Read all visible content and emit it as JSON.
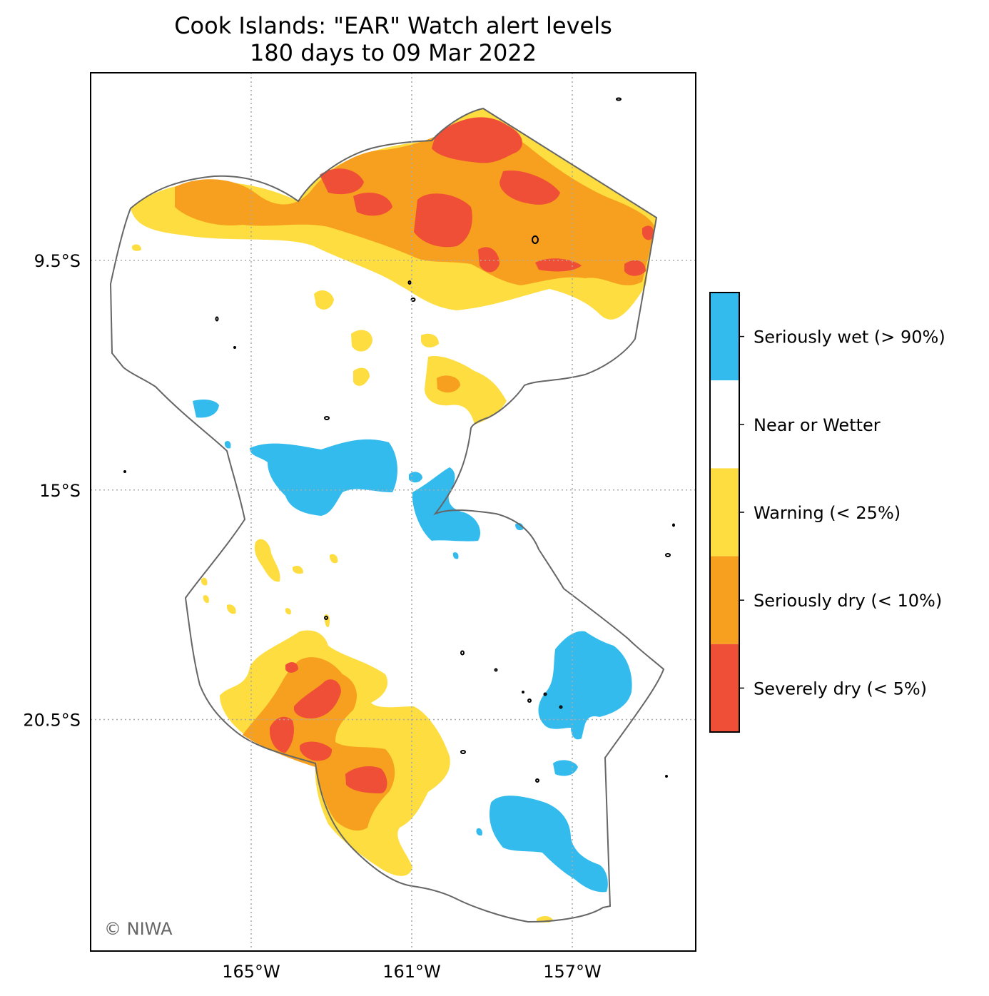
{
  "title_line1": "Cook Islands: \"EAR\" Watch alert levels",
  "title_line2": "180 days to 09 Mar 2022",
  "copyright": "© NIWA",
  "axes": {
    "x_ticks": [
      {
        "lon": -165,
        "label": "165°W"
      },
      {
        "lon": -161,
        "label": "161°W"
      },
      {
        "lon": -157,
        "label": "157°W"
      }
    ],
    "y_ticks": [
      {
        "lat": -9.5,
        "label": "9.5°S"
      },
      {
        "lat": -15,
        "label": "15°S"
      },
      {
        "lat": -20.5,
        "label": "20.5°S"
      }
    ],
    "grid": true
  },
  "legend": {
    "placement": "right",
    "items": [
      {
        "label": "Seriously wet (> 90%)",
        "color": "#33bbee"
      },
      {
        "label": "Near or Wetter",
        "color": "#ffffff"
      },
      {
        "label": "Warning (< 25%)",
        "color": "#fddd3f"
      },
      {
        "label": "Seriously dry (< 10%)",
        "color": "#f7a01f"
      },
      {
        "label": "Severely dry (< 5%)",
        "color": "#ef4f37"
      }
    ]
  },
  "colors": {
    "seriously_wet": "#33bbee",
    "warning": "#fddd3f",
    "seriously_dry": "#f7a01f",
    "severely_dry": "#ef4f37",
    "boundary": "#666666"
  }
}
